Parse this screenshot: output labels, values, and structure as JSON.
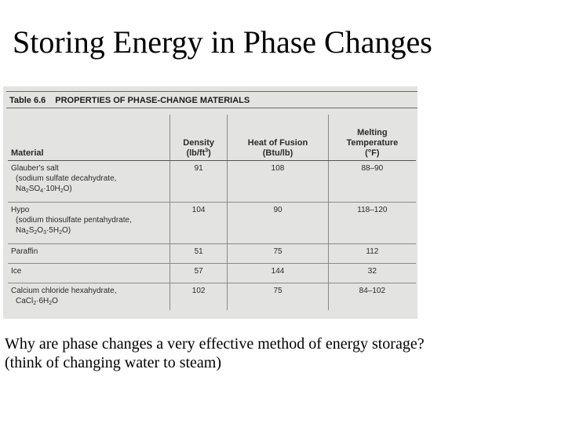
{
  "slide": {
    "title": "Storing Energy in Phase Changes"
  },
  "table": {
    "number": "Table 6.6",
    "title": "PROPERTIES OF PHASE-CHANGE MATERIALS",
    "headers": {
      "material": "Material",
      "density": [
        "Density",
        "(lb/ft",
        "3",
        ")"
      ],
      "heat": [
        "Heat of Fusion",
        "(Btu/lb)"
      ],
      "melting": [
        "Melting",
        "Temperature",
        "(°F)"
      ]
    },
    "rows": [
      {
        "name": "Glauber's salt",
        "detail1": "(sodium sulfate decahydrate,",
        "formula": [
          "Na",
          "2",
          "SO",
          "4",
          "·10H",
          "2",
          "O)"
        ],
        "density": "91",
        "heat": "108",
        "melting": "88–90"
      },
      {
        "name": "Hypo",
        "detail1": "(sodium thiosulfate pentahydrate,",
        "formula": [
          "Na",
          "2",
          "S",
          "2",
          "O",
          "3",
          "·5H",
          "2",
          "O)"
        ],
        "density": "104",
        "heat": "90",
        "melting": "118–120"
      },
      {
        "name": "Paraffin",
        "density": "51",
        "heat": "75",
        "melting": "112"
      },
      {
        "name": "Ice",
        "density": "57",
        "heat": "144",
        "melting": "32"
      },
      {
        "name": "Calcium chloride hexahydrate,",
        "formula": [
          "CaCl",
          "2",
          "·6H",
          "2",
          "O"
        ],
        "density": "102",
        "heat": "75",
        "melting": "84–102"
      }
    ]
  },
  "question": {
    "line1": "Why are phase changes a very effective method of energy storage?",
    "line2": "(think of changing water to steam)"
  }
}
